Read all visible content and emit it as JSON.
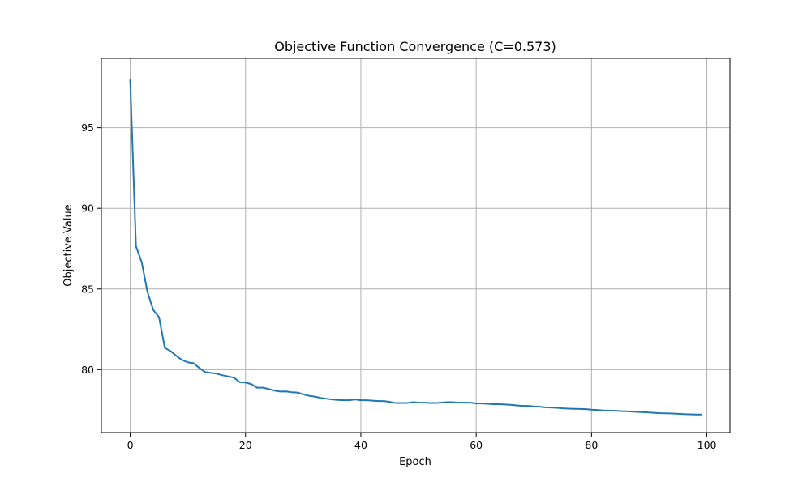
{
  "chart_data": {
    "type": "line",
    "title": "Objective Function Convergence (C=0.573)",
    "xlabel": "Epoch",
    "ylabel": "Objective Value",
    "xlim": [
      -5,
      104
    ],
    "ylim": [
      76.1,
      99.3
    ],
    "xticks": [
      0,
      20,
      40,
      60,
      80,
      100
    ],
    "yticks": [
      80,
      85,
      90,
      95
    ],
    "grid": true,
    "series": [
      {
        "color": "#1f77b4",
        "x": [
          0,
          1,
          2,
          3,
          4,
          5,
          6,
          7,
          8,
          9,
          10,
          11,
          12,
          13,
          14,
          15,
          16,
          17,
          18,
          19,
          20,
          21,
          22,
          23,
          24,
          25,
          26,
          27,
          28,
          29,
          30,
          31,
          32,
          33,
          34,
          35,
          36,
          37,
          38,
          39,
          40,
          41,
          42,
          43,
          44,
          45,
          46,
          47,
          48,
          49,
          50,
          51,
          52,
          53,
          54,
          55,
          56,
          57,
          58,
          59,
          60,
          61,
          62,
          63,
          64,
          65,
          66,
          67,
          68,
          69,
          70,
          71,
          72,
          73,
          74,
          75,
          76,
          77,
          78,
          79,
          80,
          81,
          82,
          83,
          84,
          85,
          86,
          87,
          88,
          89,
          90,
          91,
          92,
          93,
          94,
          95,
          96,
          97,
          98,
          99
        ],
        "y": [
          97.95,
          87.65,
          86.65,
          84.8,
          83.7,
          83.25,
          81.35,
          81.15,
          80.85,
          80.6,
          80.45,
          80.4,
          80.1,
          79.85,
          79.8,
          79.75,
          79.65,
          79.58,
          79.5,
          79.22,
          79.2,
          79.1,
          78.88,
          78.88,
          78.8,
          78.7,
          78.64,
          78.65,
          78.6,
          78.58,
          78.47,
          78.38,
          78.33,
          78.25,
          78.2,
          78.15,
          78.12,
          78.1,
          78.1,
          78.15,
          78.1,
          78.1,
          78.08,
          78.05,
          78.05,
          78.0,
          77.93,
          77.93,
          77.93,
          77.98,
          77.96,
          77.95,
          77.93,
          77.93,
          77.96,
          77.98,
          77.98,
          77.95,
          77.95,
          77.95,
          77.9,
          77.9,
          77.88,
          77.86,
          77.86,
          77.84,
          77.82,
          77.78,
          77.75,
          77.75,
          77.72,
          77.7,
          77.66,
          77.65,
          77.63,
          77.6,
          77.58,
          77.57,
          77.56,
          77.55,
          77.52,
          77.5,
          77.47,
          77.46,
          77.45,
          77.43,
          77.42,
          77.4,
          77.38,
          77.36,
          77.34,
          77.32,
          77.3,
          77.29,
          77.28,
          77.26,
          77.24,
          77.23,
          77.22,
          77.22
        ]
      }
    ]
  }
}
